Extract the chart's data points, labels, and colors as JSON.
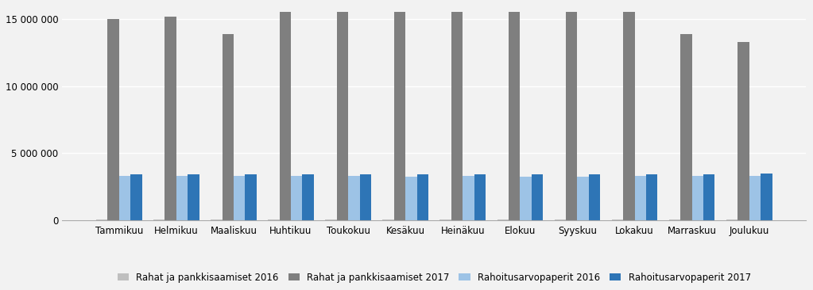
{
  "months": [
    "Tammikuu",
    "Helmikuu",
    "Maaliskuu",
    "Huhtikuu",
    "Toukokuu",
    "Kesäkuu",
    "Heinäkuu",
    "Elokuu",
    "Syyskuu",
    "Lokakuu",
    "Marraskuu",
    "Joulukuu"
  ],
  "series": {
    "Rahat ja pankkisaamiset 2016": [
      50000,
      50000,
      50000,
      50000,
      50000,
      50000,
      50000,
      50000,
      50000,
      50000,
      50000,
      50000
    ],
    "Rahat ja pankkisaamiset 2017": [
      15000000,
      15200000,
      13900000,
      15500000,
      15500000,
      15500000,
      15500000,
      15500000,
      15500000,
      15500000,
      13900000,
      13300000
    ],
    "Rahoitusarvopaperit 2016": [
      3320000,
      3300000,
      3330000,
      3290000,
      3290000,
      3280000,
      3290000,
      3270000,
      3260000,
      3290000,
      3290000,
      3290000
    ],
    "Rahoitusarvopaperit 2017": [
      3450000,
      3440000,
      3430000,
      3420000,
      3430000,
      3430000,
      3430000,
      3430000,
      3420000,
      3430000,
      3430000,
      3500000
    ]
  },
  "colors": {
    "Rahat ja pankkisaamiset 2016": "#bfbfbf",
    "Rahat ja pankkisaamiset 2017": "#7f7f7f",
    "Rahoitusarvopaperit 2016": "#9dc3e6",
    "Rahoitusarvopaperit 2017": "#2e75b6"
  },
  "ylim": [
    0,
    16000000
  ],
  "yticks": [
    0,
    5000000,
    10000000,
    15000000
  ],
  "ytick_labels": [
    "0",
    "5 000 000",
    "10 000 000",
    "15 000 000"
  ],
  "legend_labels": [
    "Rahat ja pankkisaamiset 2016",
    "Rahat ja pankkisaamiset 2017",
    "Rahoitusarvopaperit 2016",
    "Rahoitusarvopaperit 2017"
  ],
  "background_color": "#f2f2f2",
  "grid_color": "#ffffff",
  "bar_width": 0.2,
  "figsize": [
    10.23,
    3.66
  ],
  "dpi": 100
}
